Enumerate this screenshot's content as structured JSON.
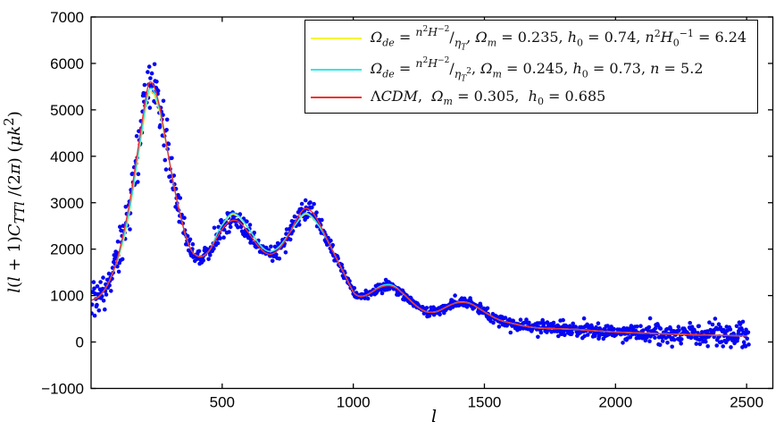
{
  "figure": {
    "background": "#ffffff",
    "frame_color": "#000000",
    "tick_label_color": "#000000"
  },
  "axes": {
    "xlabel_html": "<i>l</i>",
    "ylabel_html": "<i>l</i>(<i>l</i> + 1)<i>C</i><sub><i>TTl</i></sub> /(2<i>π</i>) (<i>μk</i><sup>2</sup>)"
  },
  "legend": {
    "entries": [
      {
        "color": "#f6f63c",
        "label_text": "Ω_de = n²H⁻²/η_T, Ω_m = 0.235, h_0 = 0.74, n²H_0⁻¹ = 6.24",
        "label_html": "<i>Ω</i><sub><i>de</i></sub> = <span class='fr-num'><i>n</i><sup>2</sup><i>H</i><sup>−2</sup></span>/<span class='fr-den'><i>η</i><sub><i>T</i></sub></span>, <i>Ω</i><sub><i>m</i></sub> = 0.235, <i>h</i><sub>0</sub> = 0.74, <i>n</i><sup>2</sup><i>H</i><sub>0</sub><sup>−1</sup> = 6.24"
      },
      {
        "color": "#2ee9e9",
        "label_text": "Ω_de = n²H⁻²/η_T², Ω_m = 0.245, h_0 = 0.73, n = 5.2",
        "label_html": "<i>Ω</i><sub><i>de</i></sub> = <span class='fr-num'><i>n</i><sup>2</sup><i>H</i><sup>−2</sup></span>/<span class='fr-den'><i>η</i><sub><i>T</i></sub><sup>2</sup></span>, <i>Ω</i><sub><i>m</i></sub> = 0.245, <i>h</i><sub>0</sub> = 0.73, <i>n</i> = 5.2"
      },
      {
        "color": "#f23131",
        "label_text": "ΛCDM, Ω_m = 0.305, h_0 = 0.685",
        "label_html": "Λ<i>CDM</i>, &nbsp;<i>Ω</i><sub><i>m</i></sub> = 0.305, &nbsp;<i>h</i><sub>0</sub> = 0.685"
      }
    ]
  },
  "chart_data": {
    "type": "scatter",
    "title": "",
    "xlabel": "l",
    "ylabel": "l(l+1)C_TTl/(2π) (μk²)",
    "xlim": [
      0,
      2600
    ],
    "ylim": [
      -1000,
      7000
    ],
    "xticks": [
      500,
      1000,
      1500,
      2000,
      2500
    ],
    "yticks": [
      -1000,
      0,
      1000,
      2000,
      3000,
      4000,
      5000,
      6000,
      7000
    ],
    "grid": false,
    "legend_position": "upper right",
    "l_grid": [
      2,
      30,
      60,
      90,
      120,
      150,
      180,
      200,
      215,
      225,
      240,
      260,
      280,
      300,
      320,
      340,
      360,
      380,
      400,
      420,
      440,
      460,
      480,
      500,
      520,
      540,
      560,
      580,
      600,
      620,
      640,
      660,
      680,
      700,
      720,
      740,
      760,
      780,
      800,
      815,
      830,
      850,
      870,
      890,
      910,
      930,
      950,
      970,
      1000,
      1020,
      1040,
      1060,
      1080,
      1100,
      1120,
      1140,
      1160,
      1180,
      1200,
      1220,
      1240,
      1260,
      1280,
      1300,
      1320,
      1340,
      1360,
      1380,
      1400,
      1420,
      1440,
      1460,
      1480,
      1500,
      1520,
      1540,
      1560,
      1580,
      1600,
      1650,
      1700,
      1750,
      1800,
      1850,
      1900,
      1950,
      2000,
      2050,
      2100,
      2150,
      2200,
      2250,
      2300,
      2350,
      2400,
      2450,
      2500
    ],
    "series": [
      {
        "name": "yellow-model",
        "color": "#f6f63c",
        "line_width": 1.4,
        "values": [
          900,
          980,
          1200,
          1600,
          2100,
          2900,
          4000,
          4700,
          5230,
          5390,
          5320,
          4970,
          4440,
          3850,
          3250,
          2750,
          2300,
          2000,
          1870,
          1840,
          1900,
          2050,
          2330,
          2520,
          2660,
          2750,
          2700,
          2580,
          2450,
          2280,
          2120,
          2000,
          1950,
          1980,
          2070,
          2210,
          2380,
          2530,
          2680,
          2750,
          2740,
          2630,
          2490,
          2310,
          2100,
          1870,
          1640,
          1420,
          1080,
          990,
          990,
          1040,
          1110,
          1190,
          1230,
          1235,
          1190,
          1090,
          990,
          880,
          780,
          700,
          650,
          640,
          660,
          710,
          770,
          820,
          855,
          858,
          840,
          790,
          720,
          650,
          580,
          520,
          470,
          435,
          410,
          345,
          305,
          290,
          283,
          270,
          250,
          232,
          215,
          203,
          192,
          182,
          172,
          164,
          156,
          149,
          143,
          137,
          132
        ]
      },
      {
        "name": "cyan-model",
        "color": "#2ee9e9",
        "line_width": 1.4,
        "values": [
          900,
          980,
          1200,
          1600,
          2150,
          2950,
          4050,
          4780,
          5300,
          5460,
          5390,
          5030,
          4480,
          3870,
          3250,
          2750,
          2300,
          2000,
          1870,
          1840,
          1900,
          2050,
          2330,
          2520,
          2690,
          2780,
          2730,
          2610,
          2450,
          2280,
          2120,
          2000,
          1950,
          1980,
          2070,
          2210,
          2380,
          2530,
          2700,
          2770,
          2755,
          2650,
          2490,
          2310,
          2100,
          1870,
          1640,
          1420,
          1080,
          990,
          990,
          1040,
          1110,
          1190,
          1230,
          1235,
          1190,
          1090,
          990,
          880,
          780,
          700,
          650,
          640,
          660,
          710,
          770,
          820,
          855,
          858,
          840,
          790,
          720,
          650,
          580,
          520,
          470,
          435,
          410,
          345,
          305,
          290,
          283,
          270,
          250,
          232,
          215,
          203,
          192,
          182,
          172,
          164,
          156,
          149,
          143,
          137,
          132
        ]
      },
      {
        "name": "lcdm-model",
        "color": "#f23131",
        "line_width": 1.4,
        "values": [
          900,
          980,
          1200,
          1600,
          2250,
          3100,
          4200,
          4950,
          5450,
          5600,
          5500,
          5100,
          4500,
          3850,
          3250,
          2750,
          2300,
          2000,
          1870,
          1840,
          1900,
          2050,
          2250,
          2430,
          2560,
          2620,
          2600,
          2500,
          2360,
          2200,
          2050,
          1940,
          1890,
          1920,
          2020,
          2180,
          2380,
          2600,
          2790,
          2870,
          2860,
          2750,
          2560,
          2330,
          2100,
          1870,
          1640,
          1420,
          1080,
          990,
          990,
          1040,
          1110,
          1170,
          1205,
          1210,
          1170,
          1090,
          990,
          880,
          780,
          700,
          650,
          640,
          660,
          710,
          770,
          820,
          845,
          850,
          835,
          790,
          720,
          650,
          580,
          520,
          470,
          435,
          410,
          345,
          305,
          290,
          283,
          270,
          250,
          232,
          215,
          203,
          192,
          182,
          172,
          164,
          156,
          149,
          143,
          137,
          132
        ]
      }
    ],
    "scatter": {
      "name": "observed-cl-points",
      "color": "#0606f2",
      "radius": 2.3,
      "l_min": 2,
      "l_max": 2508,
      "step": 2,
      "seed": 20,
      "base_series": 2,
      "noise": {
        "cosmic_variance_factor": 1.0,
        "cv_cap": 500,
        "floor": 12,
        "exp_scale": 1000
      }
    }
  }
}
